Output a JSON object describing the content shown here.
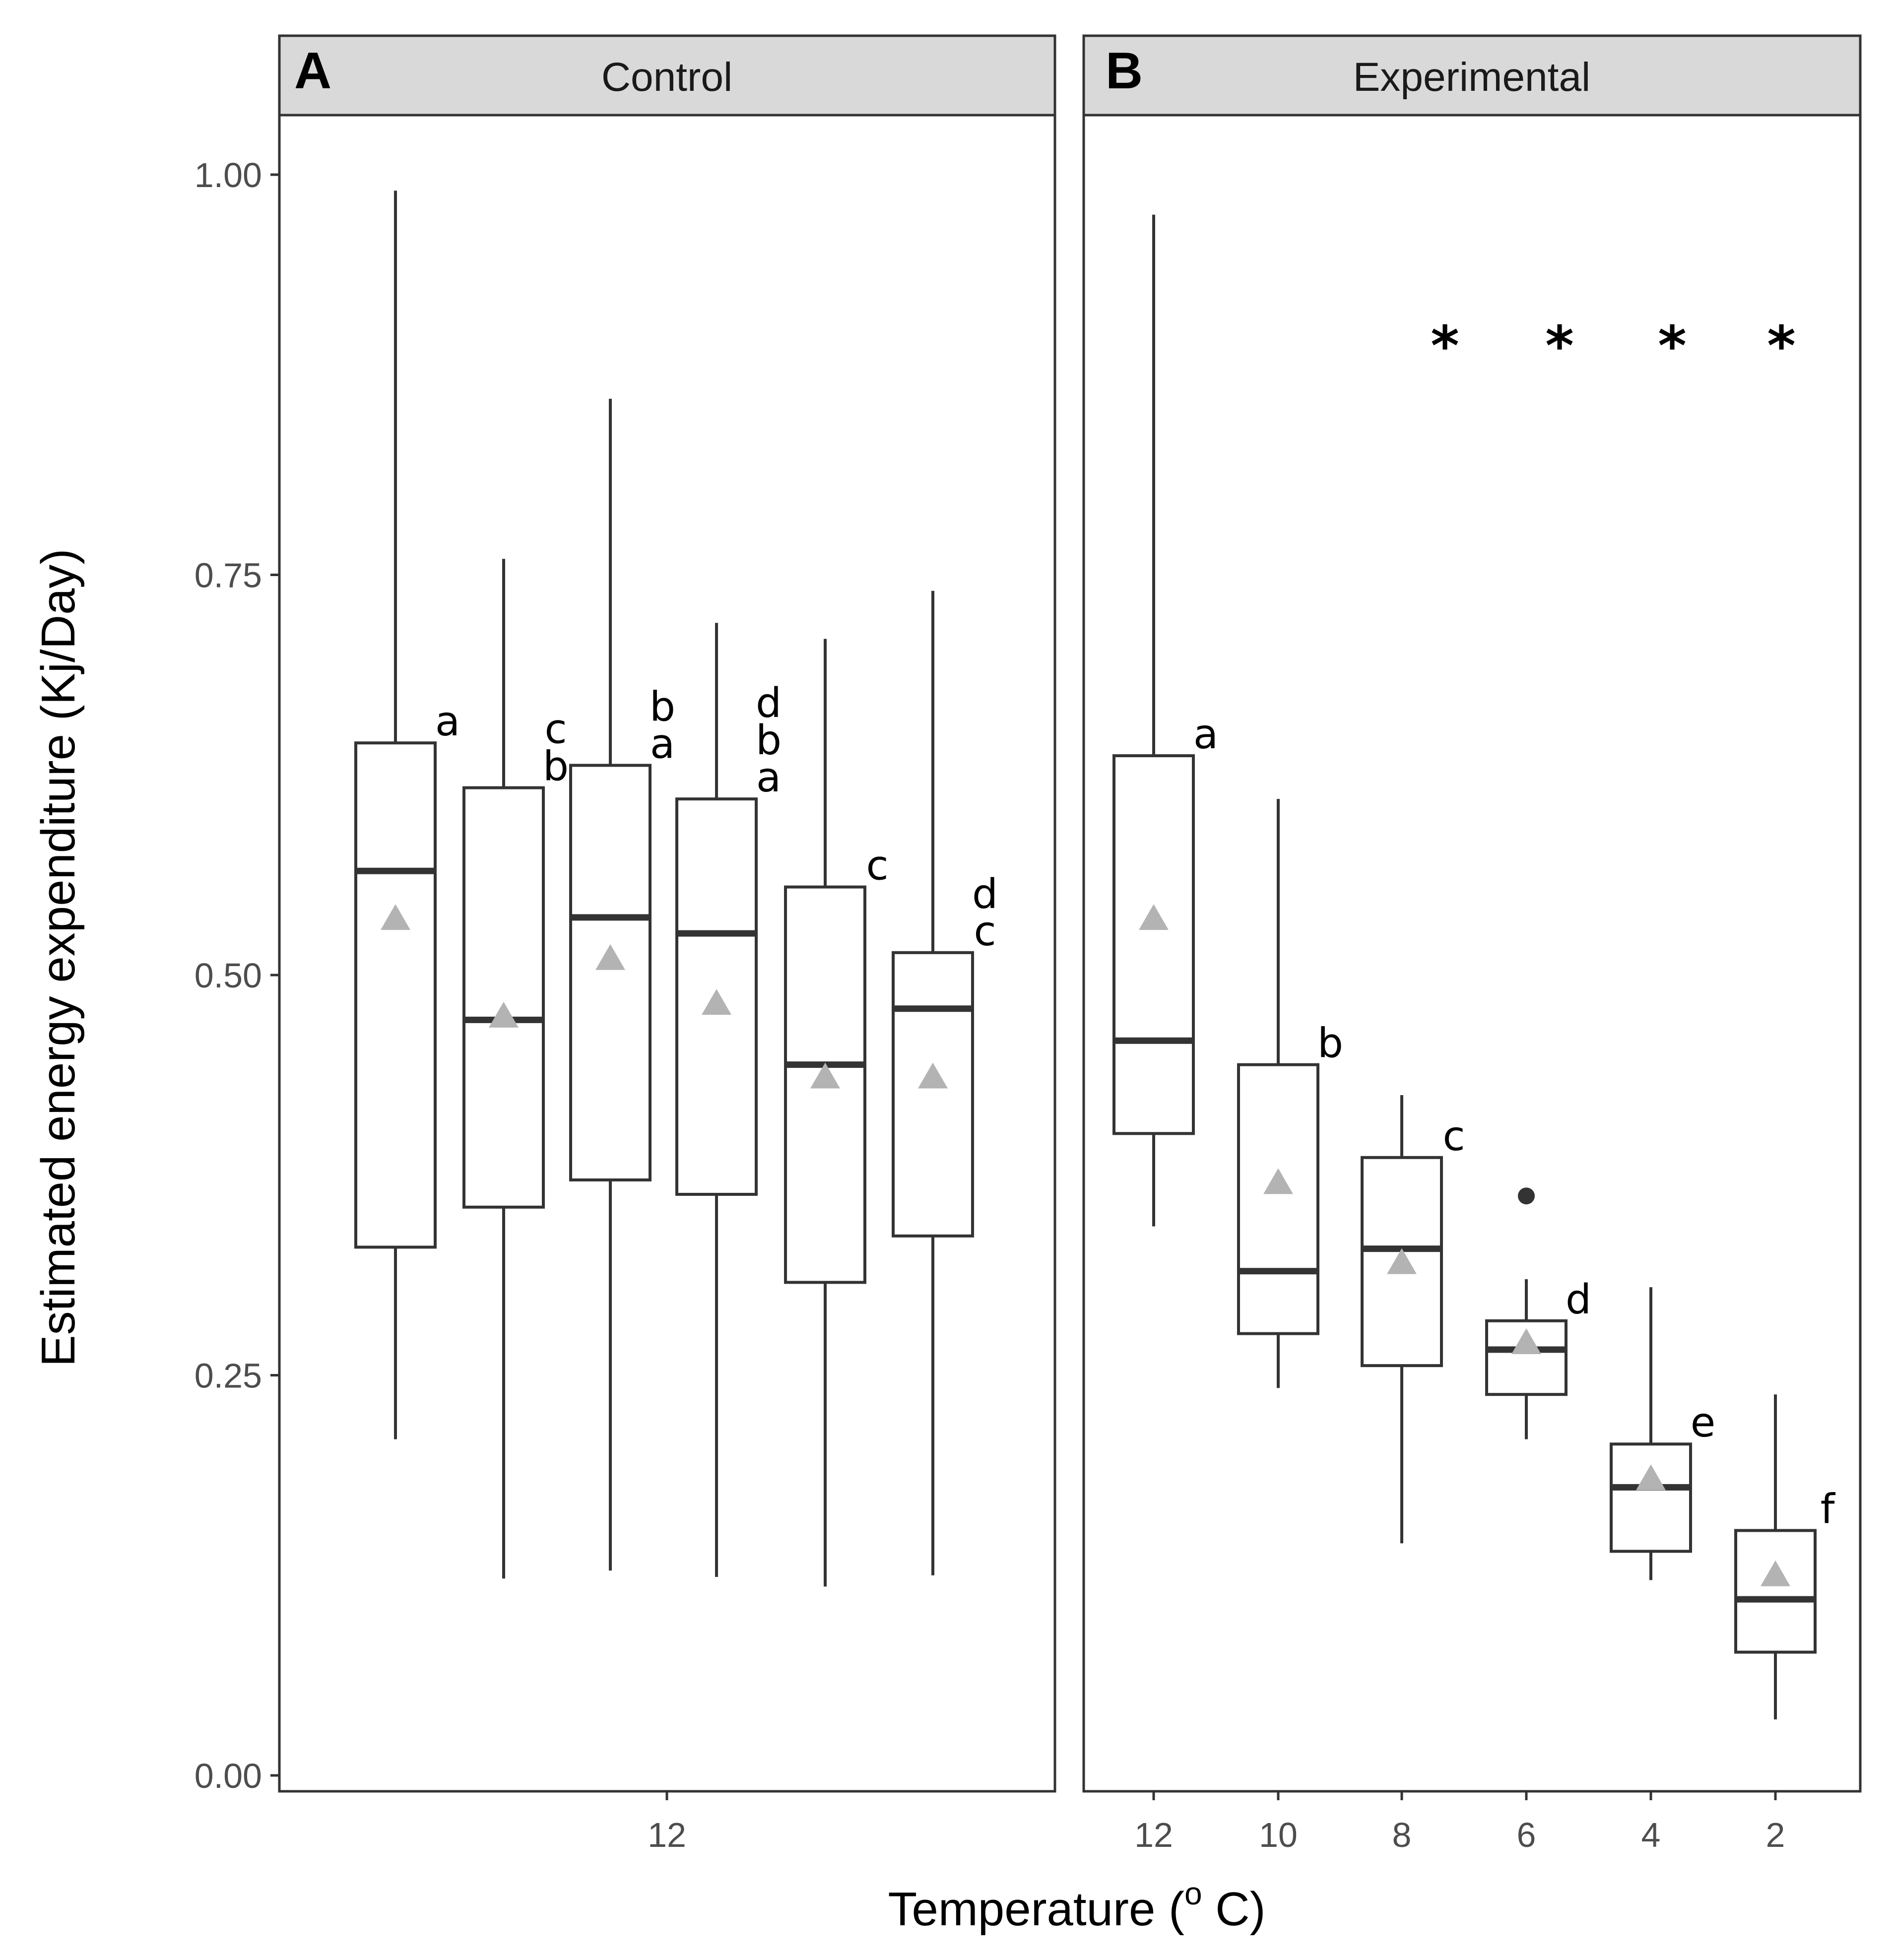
{
  "chart_data": {
    "type": "box",
    "ylabel": "Estimated energy expenditure (Kj/Day)",
    "xlabel": {
      "main": "Temperature  (",
      "superscript": "o",
      "unit": " C)"
    },
    "ylim": [
      -0.01,
      1.05
    ],
    "yticks": [
      {
        "value": 0.0,
        "label": "0.00"
      },
      {
        "value": 0.25,
        "label": "0.25"
      },
      {
        "value": 0.5,
        "label": "0.50"
      },
      {
        "value": 0.75,
        "label": "0.75"
      },
      {
        "value": 1.0,
        "label": "1.00"
      }
    ],
    "panels": [
      {
        "letter": "A",
        "title": "Control",
        "xtick_labels": [
          "12"
        ],
        "boxes": [
          {
            "whisker_low": 0.21,
            "q1": 0.33,
            "median": 0.565,
            "q3": 0.645,
            "whisker_high": 0.99,
            "mean": 0.535,
            "letters": [
              "a"
            ],
            "outliers": []
          },
          {
            "whisker_low": 0.123,
            "q1": 0.355,
            "median": 0.472,
            "q3": 0.617,
            "whisker_high": 0.76,
            "mean": 0.474,
            "letters": [
              "c",
              "b"
            ],
            "outliers": []
          },
          {
            "whisker_low": 0.128,
            "q1": 0.372,
            "median": 0.536,
            "q3": 0.631,
            "whisker_high": 0.86,
            "mean": 0.51,
            "letters": [
              "b",
              "a"
            ],
            "outliers": []
          },
          {
            "whisker_low": 0.124,
            "q1": 0.363,
            "median": 0.526,
            "q3": 0.61,
            "whisker_high": 0.72,
            "mean": 0.482,
            "letters": [
              "d",
              "b",
              "a"
            ],
            "outliers": []
          },
          {
            "whisker_low": 0.118,
            "q1": 0.308,
            "median": 0.444,
            "q3": 0.555,
            "whisker_high": 0.71,
            "mean": 0.436,
            "letters": [
              "c"
            ],
            "outliers": []
          },
          {
            "whisker_low": 0.125,
            "q1": 0.337,
            "median": 0.479,
            "q3": 0.514,
            "whisker_high": 0.74,
            "mean": 0.436,
            "letters": [
              "d",
              "c"
            ],
            "outliers": []
          }
        ]
      },
      {
        "letter": "B",
        "title": "Experimental",
        "xtick_labels": [
          "12",
          "10",
          "8",
          "6",
          "4",
          "2"
        ],
        "significance_marks": [
          "*",
          "*",
          "*",
          "*"
        ],
        "boxes": [
          {
            "category": "12",
            "whisker_low": 0.343,
            "q1": 0.401,
            "median": 0.459,
            "q3": 0.637,
            "whisker_high": 0.975,
            "mean": 0.535,
            "letters": [
              "a"
            ],
            "outliers": []
          },
          {
            "category": "10",
            "whisker_low": 0.242,
            "q1": 0.276,
            "median": 0.315,
            "q3": 0.444,
            "whisker_high": 0.61,
            "mean": 0.37,
            "letters": [
              "b"
            ],
            "outliers": []
          },
          {
            "category": "8",
            "whisker_low": 0.145,
            "q1": 0.256,
            "median": 0.329,
            "q3": 0.386,
            "whisker_high": 0.425,
            "mean": 0.32,
            "letters": [
              "c"
            ],
            "outliers": []
          },
          {
            "category": "6",
            "whisker_low": 0.21,
            "q1": 0.238,
            "median": 0.266,
            "q3": 0.284,
            "whisker_high": 0.31,
            "mean": 0.27,
            "letters": [
              "d"
            ],
            "outliers": [
              0.362
            ]
          },
          {
            "category": "4",
            "whisker_low": 0.122,
            "q1": 0.14,
            "median": 0.18,
            "q3": 0.207,
            "whisker_high": 0.305,
            "mean": 0.185,
            "letters": [
              "e"
            ],
            "outliers": []
          },
          {
            "category": "2",
            "whisker_low": 0.035,
            "q1": 0.077,
            "median": 0.11,
            "q3": 0.153,
            "whisker_high": 0.238,
            "mean": 0.125,
            "letters": [
              "f"
            ],
            "outliers": []
          }
        ]
      }
    ],
    "colors": {
      "box_line": "#333333",
      "mean_marker": "#b3b3b3",
      "strip_fill": "#d9d9d9",
      "panel_border": "#333333",
      "outlier": "#333333"
    }
  }
}
